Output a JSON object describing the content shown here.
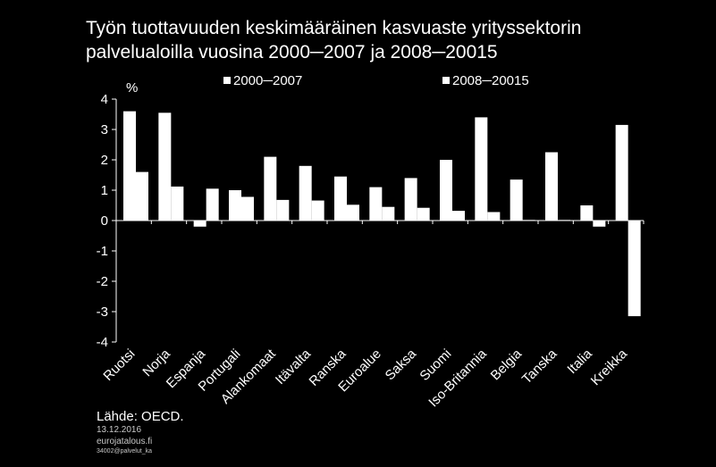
{
  "title": {
    "line1": "Työn tuottavuuden keskimääräinen kasvuaste yrityssektorin",
    "line2": "palvelualoilla vuosina 2000─2007 ja 2008─20015"
  },
  "footer": {
    "source": "Lähde: OECD.",
    "date": "13.12.2016",
    "site": "eurojatalous.fi",
    "code": "34002@palvelut_ka"
  },
  "colors": {
    "background": "#000000",
    "bars": "#ffffff",
    "axis": "#ffffff",
    "text": "#ffffff"
  },
  "chart_data": {
    "type": "bar",
    "ylabel": "%",
    "ylim": [
      -4,
      4
    ],
    "yticks": [
      4,
      3,
      2,
      1,
      0,
      -1,
      -2,
      -3,
      -4
    ],
    "grid": false,
    "legend_position": "top",
    "categories": [
      "Ruotsi",
      "Norja",
      "Espanja",
      "Portugali",
      "Alankomaat",
      "Itävalta",
      "Ranska",
      "Euroalue",
      "Saksa",
      "Suomi",
      "Iso-Britannia",
      "Belgia",
      "Tanska",
      "Italia",
      "Kreikka"
    ],
    "series": [
      {
        "name": "2000─2007",
        "values": [
          3.6,
          3.55,
          -0.2,
          1.0,
          2.1,
          1.8,
          1.45,
          1.1,
          1.4,
          2.0,
          3.4,
          1.35,
          2.25,
          0.5,
          3.15
        ]
      },
      {
        "name": "2008─20015",
        "values": [
          1.6,
          1.12,
          1.05,
          0.78,
          0.68,
          0.66,
          0.52,
          0.45,
          0.42,
          0.32,
          0.28,
          0.02,
          0.02,
          -0.2,
          -3.15
        ]
      }
    ]
  }
}
